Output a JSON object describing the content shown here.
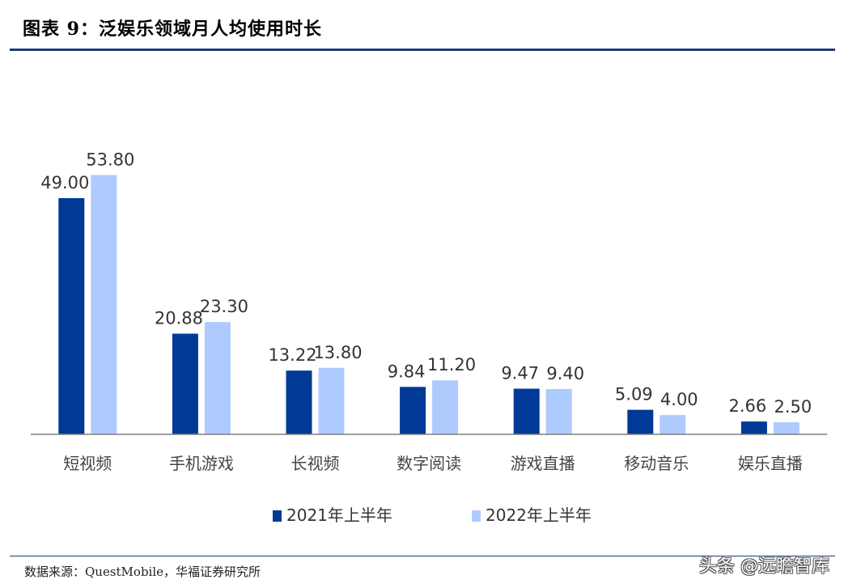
{
  "title": "图表 9：泛娱乐领域月人均使用时长",
  "source": "数据来源：QuestMobile，华福证券研究所",
  "watermark": "头条 @远瞻智库",
  "colors": {
    "series1": "#003a96",
    "series2": "#aecbff",
    "axis": "#7f7f7f",
    "rule": "#1f3a73"
  },
  "chart_data": {
    "type": "bar",
    "categories": [
      "短视频",
      "手机游戏",
      "长视频",
      "数字阅读",
      "游戏直播",
      "移动音乐",
      "娱乐直播"
    ],
    "series": [
      {
        "name": "2021年上半年",
        "values": [
          49.0,
          20.88,
          13.22,
          9.84,
          9.47,
          5.09,
          2.66
        ],
        "labels": [
          "49.00",
          "20.88",
          "13.22",
          "9.84",
          "9.47",
          "5.09",
          "2.66"
        ]
      },
      {
        "name": "2022年上半年",
        "values": [
          53.8,
          23.3,
          13.8,
          11.2,
          9.4,
          4.0,
          2.5
        ],
        "labels": [
          "53.80",
          "23.30",
          "13.80",
          "11.20",
          "9.40",
          "4.00",
          "2.50"
        ]
      }
    ],
    "ylim": [
      0,
      60
    ],
    "grid": false,
    "legend": "bottom"
  }
}
